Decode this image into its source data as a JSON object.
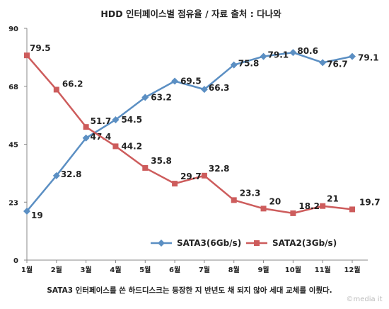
{
  "chart_data": {
    "type": "line",
    "title": "HDD 인터페이스별 점유율 / 자료 출처 : 다나와",
    "categories": [
      "1월",
      "2월",
      "3월",
      "4월",
      "5월",
      "6월",
      "7월",
      "8월",
      "9월",
      "10월",
      "11월",
      "12월"
    ],
    "y_ticks": [
      "0",
      "23",
      "45",
      "68",
      "90"
    ],
    "ylim": [
      0,
      90
    ],
    "grid": false,
    "legend_position": "bottom-center",
    "series": [
      {
        "name": "SATA3(6Gb/s)",
        "color": "#5B8FC3",
        "marker": "diamond",
        "values": [
          19,
          32.8,
          47.4,
          54.5,
          63.2,
          69.5,
          66.3,
          75.8,
          79.1,
          80.6,
          76.7,
          79.1
        ],
        "labels": [
          "19",
          "32.8",
          "47.4",
          "54.5",
          "63.2",
          "69.5",
          "66.3",
          "75.8",
          "79.1",
          "80.6",
          "76.7",
          "79.1"
        ]
      },
      {
        "name": "SATA2(3Gb/s)",
        "color": "#CD5C5C",
        "marker": "square",
        "values": [
          79.5,
          66.2,
          51.7,
          44.2,
          35.8,
          29.7,
          32.8,
          23.3,
          20,
          18.2,
          21,
          19.7
        ],
        "labels": [
          "79.5",
          "66.2",
          "51.7",
          "44.2",
          "35.8",
          "29.7",
          "32.8",
          "23.3",
          "20",
          "18.2",
          "21",
          "19.7"
        ]
      }
    ]
  },
  "caption": "SATA3 인터페이스를 쓴 하드디스크는 등장한 지 반년도 채 되지 않아 세대 교체를 이뤘다.",
  "credit": "©media it"
}
